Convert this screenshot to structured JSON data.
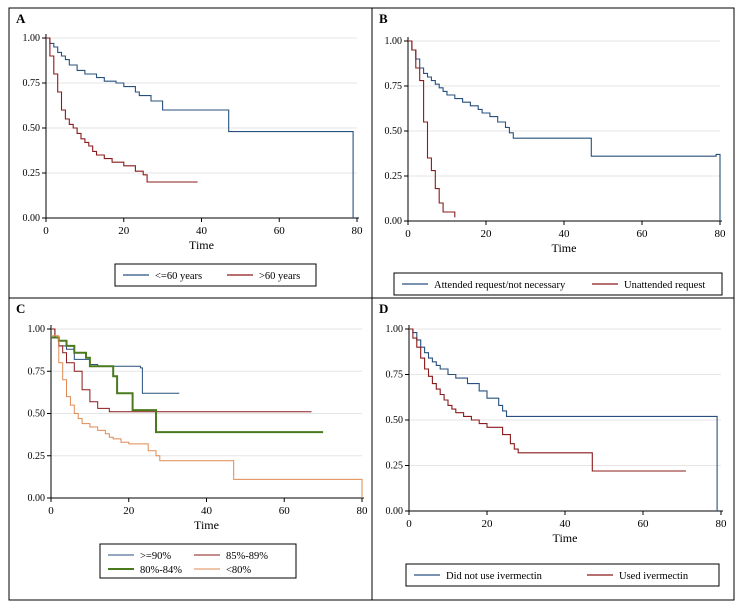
{
  "colors": {
    "navy": "#27507f",
    "darkred": "#8b1a1a",
    "green": "#4a7a1e",
    "orange": "#e08a50",
    "frame": "#000000",
    "grid": "#e6e6e6"
  },
  "chart_data": [
    {
      "panel": "A",
      "type": "line",
      "xlabel": "Time",
      "xticks": [
        0,
        20,
        40,
        60,
        80
      ],
      "yticks": [
        0.0,
        0.25,
        0.5,
        0.75,
        1.0
      ],
      "ytick_labels": [
        "0.00",
        "0.25",
        "0.50",
        "0.75",
        "1.00"
      ],
      "xlim": [
        0,
        80
      ],
      "ylim": [
        0,
        1
      ],
      "legend": [
        "<=60 years",
        ">60 years"
      ],
      "series": [
        {
          "name": "<=60 years",
          "color": "#27507f",
          "steps": [
            [
              0,
              1.0
            ],
            [
              1,
              0.97
            ],
            [
              2,
              0.95
            ],
            [
              3,
              0.92
            ],
            [
              4,
              0.9
            ],
            [
              5,
              0.88
            ],
            [
              6,
              0.85
            ],
            [
              8,
              0.82
            ],
            [
              10,
              0.8
            ],
            [
              13,
              0.78
            ],
            [
              15,
              0.76
            ],
            [
              18,
              0.75
            ],
            [
              20,
              0.73
            ],
            [
              23,
              0.7
            ],
            [
              24,
              0.68
            ],
            [
              27,
              0.65
            ],
            [
              30,
              0.6
            ],
            [
              47,
              0.48
            ],
            [
              79,
              0.0
            ]
          ],
          "end": 79
        },
        {
          "name": ">60 years",
          "color": "#8b1a1a",
          "steps": [
            [
              0,
              1.0
            ],
            [
              1,
              0.9
            ],
            [
              2,
              0.8
            ],
            [
              3,
              0.7
            ],
            [
              4,
              0.6
            ],
            [
              5,
              0.55
            ],
            [
              6,
              0.52
            ],
            [
              7,
              0.5
            ],
            [
              8,
              0.47
            ],
            [
              9,
              0.44
            ],
            [
              10,
              0.42
            ],
            [
              11,
              0.4
            ],
            [
              12,
              0.37
            ],
            [
              13,
              0.35
            ],
            [
              15,
              0.33
            ],
            [
              17,
              0.31
            ],
            [
              20,
              0.29
            ],
            [
              23,
              0.26
            ],
            [
              25,
              0.24
            ],
            [
              26,
              0.2
            ]
          ],
          "end": 39
        }
      ]
    },
    {
      "panel": "B",
      "type": "line",
      "xlabel": "Time",
      "xticks": [
        0,
        20,
        40,
        60,
        80
      ],
      "yticks": [
        0.0,
        0.25,
        0.5,
        0.75,
        1.0
      ],
      "ytick_labels": [
        "0.00",
        "0.25",
        "0.50",
        "0.75",
        "1.00"
      ],
      "xlim": [
        0,
        80
      ],
      "ylim": [
        0,
        1
      ],
      "legend": [
        "Attended request/not necessary",
        "Unattended request"
      ],
      "series": [
        {
          "name": "Attended request/not necessary",
          "color": "#27507f",
          "steps": [
            [
              0,
              1.0
            ],
            [
              1,
              0.95
            ],
            [
              2,
              0.9
            ],
            [
              3,
              0.85
            ],
            [
              4,
              0.82
            ],
            [
              5,
              0.8
            ],
            [
              6,
              0.78
            ],
            [
              7,
              0.76
            ],
            [
              8,
              0.74
            ],
            [
              9,
              0.72
            ],
            [
              10,
              0.7
            ],
            [
              12,
              0.68
            ],
            [
              14,
              0.66
            ],
            [
              16,
              0.64
            ],
            [
              18,
              0.62
            ],
            [
              19,
              0.6
            ],
            [
              21,
              0.58
            ],
            [
              23,
              0.55
            ],
            [
              25,
              0.52
            ],
            [
              26,
              0.49
            ],
            [
              27,
              0.46
            ],
            [
              47,
              0.36
            ],
            [
              79,
              0.37
            ],
            [
              80,
              0.0
            ]
          ],
          "end": 80
        },
        {
          "name": "Unattended request",
          "color": "#8b1a1a",
          "steps": [
            [
              0,
              1.0
            ],
            [
              1,
              0.95
            ],
            [
              2,
              0.85
            ],
            [
              3,
              0.78
            ],
            [
              4,
              0.55
            ],
            [
              5,
              0.35
            ],
            [
              6,
              0.28
            ],
            [
              7,
              0.18
            ],
            [
              8,
              0.1
            ],
            [
              9,
              0.05
            ],
            [
              12,
              0.02
            ]
          ],
          "end": 12
        }
      ]
    },
    {
      "panel": "C",
      "type": "line",
      "xlabel": "Time",
      "xticks": [
        0,
        20,
        40,
        60,
        80
      ],
      "yticks": [
        0.0,
        0.25,
        0.5,
        0.75,
        1.0
      ],
      "ytick_labels": [
        "0.00",
        "0.25",
        "0.50",
        "0.75",
        "1.00"
      ],
      "xlim": [
        0,
        80
      ],
      "ylim": [
        0,
        1
      ],
      "legend": [
        ">=90%",
        "85%-89%",
        "80%-84%",
        "<80%"
      ],
      "series": [
        {
          "name": ">=90%",
          "color": "#27507f",
          "width": 1,
          "steps": [
            [
              0,
              1.0
            ],
            [
              1,
              0.95
            ],
            [
              2,
              0.9
            ],
            [
              4,
              0.88
            ],
            [
              6,
              0.82
            ],
            [
              10,
              0.79
            ],
            [
              12,
              0.78
            ],
            [
              23,
              0.77
            ],
            [
              23.5,
              0.62
            ]
          ],
          "end": 33
        },
        {
          "name": "85%-89%",
          "color": "#8b1a1a",
          "width": 1,
          "steps": [
            [
              0,
              1.0
            ],
            [
              1,
              0.95
            ],
            [
              2,
              0.9
            ],
            [
              3,
              0.86
            ],
            [
              4,
              0.8
            ],
            [
              6,
              0.75
            ],
            [
              8,
              0.64
            ],
            [
              10,
              0.57
            ],
            [
              12,
              0.53
            ],
            [
              15,
              0.51
            ],
            [
              28,
              0.51
            ]
          ],
          "end": 67
        },
        {
          "name": "80%-84%",
          "color": "#4a7a1e",
          "width": 2,
          "steps": [
            [
              0,
              0.95
            ],
            [
              2,
              0.93
            ],
            [
              4,
              0.9
            ],
            [
              6,
              0.86
            ],
            [
              9,
              0.83
            ],
            [
              10,
              0.78
            ],
            [
              16,
              0.72
            ],
            [
              17,
              0.62
            ],
            [
              21,
              0.52
            ],
            [
              27,
              0.39
            ]
          ],
          "end": 70
        },
        {
          "name": "<80%",
          "color": "#e08a50",
          "width": 1,
          "steps": [
            [
              0,
              0.96
            ],
            [
              2,
              0.8
            ],
            [
              3,
              0.7
            ],
            [
              4,
              0.6
            ],
            [
              5,
              0.55
            ],
            [
              6,
              0.5
            ],
            [
              7,
              0.47
            ],
            [
              8,
              0.44
            ],
            [
              10,
              0.42
            ],
            [
              12,
              0.4
            ],
            [
              14,
              0.38
            ],
            [
              15,
              0.36
            ],
            [
              16,
              0.35
            ],
            [
              18,
              0.33
            ],
            [
              20,
              0.32
            ],
            [
              25,
              0.28
            ],
            [
              27,
              0.25
            ],
            [
              28,
              0.22
            ],
            [
              47,
              0.11
            ],
            [
              80,
              0.0
            ]
          ],
          "end": 80
        }
      ]
    },
    {
      "panel": "D",
      "type": "line",
      "xlabel": "Time",
      "xticks": [
        0,
        20,
        40,
        60,
        80
      ],
      "yticks": [
        0.0,
        0.25,
        0.5,
        0.75,
        1.0
      ],
      "ytick_labels": [
        "0.00",
        "0.25",
        "0.50",
        "0.75",
        "1.00"
      ],
      "xlim": [
        0,
        80
      ],
      "ylim": [
        0,
        1
      ],
      "legend": [
        "Did not use ivermectin",
        "Used ivermectin"
      ],
      "series": [
        {
          "name": "Did not use ivermectin",
          "color": "#27507f",
          "steps": [
            [
              0,
              1.0
            ],
            [
              1,
              0.98
            ],
            [
              2,
              0.94
            ],
            [
              3,
              0.9
            ],
            [
              4,
              0.87
            ],
            [
              5,
              0.84
            ],
            [
              6,
              0.82
            ],
            [
              7,
              0.8
            ],
            [
              8,
              0.78
            ],
            [
              10,
              0.75
            ],
            [
              12,
              0.73
            ],
            [
              15,
              0.7
            ],
            [
              18,
              0.66
            ],
            [
              20,
              0.62
            ],
            [
              23,
              0.58
            ],
            [
              24,
              0.55
            ],
            [
              25,
              0.52
            ],
            [
              79,
              0.0
            ]
          ],
          "end": 79
        },
        {
          "name": "Used ivermectin",
          "color": "#8b1a1a",
          "steps": [
            [
              0,
              1.0
            ],
            [
              1,
              0.95
            ],
            [
              2,
              0.9
            ],
            [
              3,
              0.84
            ],
            [
              4,
              0.78
            ],
            [
              5,
              0.74
            ],
            [
              6,
              0.7
            ],
            [
              7,
              0.67
            ],
            [
              8,
              0.64
            ],
            [
              9,
              0.61
            ],
            [
              10,
              0.58
            ],
            [
              11,
              0.56
            ],
            [
              12,
              0.54
            ],
            [
              14,
              0.52
            ],
            [
              16,
              0.5
            ],
            [
              18,
              0.48
            ],
            [
              20,
              0.46
            ],
            [
              24,
              0.42
            ],
            [
              26,
              0.37
            ],
            [
              27,
              0.34
            ],
            [
              28,
              0.32
            ],
            [
              47,
              0.22
            ]
          ],
          "end": 71
        }
      ]
    }
  ]
}
